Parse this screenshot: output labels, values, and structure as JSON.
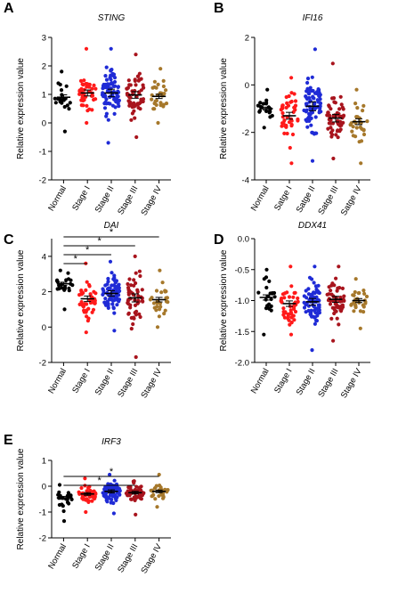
{
  "chart_data": [
    {
      "panel": "A",
      "type": "scatter",
      "title": "STING",
      "ylabel": "Relative expression value",
      "ylim": [
        -2,
        3
      ],
      "yticks": [
        -2,
        -1,
        0,
        1,
        2,
        3
      ],
      "categories": [
        "Normal",
        "Stage I",
        "Stage II",
        "Stage III",
        "Stage IV"
      ],
      "colors": [
        "#000000",
        "#ff1a1a",
        "#1f2bd6",
        "#a8141d",
        "#a6782b"
      ],
      "means": [
        0.9,
        1.05,
        1.05,
        0.98,
        0.93
      ],
      "ranges": [
        [
          -0.3,
          1.8
        ],
        [
          0.0,
          2.6
        ],
        [
          -0.7,
          2.6
        ],
        [
          -0.5,
          2.4
        ],
        [
          0.0,
          1.9
        ]
      ],
      "counts": [
        22,
        45,
        78,
        55,
        28
      ],
      "significance": []
    },
    {
      "panel": "B",
      "type": "scatter",
      "title": "IFI16",
      "ylabel": "Relative expression value",
      "ylim": [
        -4,
        2
      ],
      "yticks": [
        -4,
        -2,
        0,
        2
      ],
      "categories": [
        "Normal",
        "Satge I",
        "Satge II",
        "Satge III",
        "Satge IV"
      ],
      "colors": [
        "#000000",
        "#ff1a1a",
        "#1f2bd6",
        "#a8141d",
        "#a6782b"
      ],
      "means": [
        -1.0,
        -1.3,
        -0.9,
        -1.4,
        -1.55
      ],
      "ranges": [
        [
          -1.8,
          -0.2
        ],
        [
          -3.3,
          0.3
        ],
        [
          -3.2,
          1.5
        ],
        [
          -3.1,
          0.9
        ],
        [
          -3.3,
          -0.2
        ]
      ],
      "counts": [
        22,
        45,
        78,
        55,
        28
      ],
      "significance": []
    },
    {
      "panel": "C",
      "type": "scatter",
      "title": "DAI",
      "ylabel": "Relative expression value",
      "ylim": [
        -2,
        5
      ],
      "yticks": [
        -2,
        0,
        2,
        4
      ],
      "categories": [
        "Normal",
        "Stage I",
        "Stage II",
        "Stage III",
        "Stage IV"
      ],
      "colors": [
        "#000000",
        "#ff1a1a",
        "#1f2bd6",
        "#a8141d",
        "#a6782b"
      ],
      "means": [
        2.45,
        1.6,
        1.9,
        1.65,
        1.55
      ],
      "ranges": [
        [
          1.0,
          3.2
        ],
        [
          -0.3,
          3.6
        ],
        [
          -0.2,
          3.7
        ],
        [
          -1.7,
          4.0
        ],
        [
          0.0,
          3.2
        ]
      ],
      "counts": [
        22,
        45,
        78,
        55,
        28
      ],
      "significance": [
        {
          "from": 0,
          "to": 1,
          "label": "*"
        },
        {
          "from": 0,
          "to": 2,
          "label": "*"
        },
        {
          "from": 0,
          "to": 3,
          "label": "*"
        },
        {
          "from": 0,
          "to": 4,
          "label": "*"
        }
      ]
    },
    {
      "panel": "D",
      "type": "scatter",
      "title": "DDX41",
      "ylabel": "Relative expression value",
      "ylim": [
        -2.0,
        0.0
      ],
      "yticks": [
        -2.0,
        -1.5,
        -1.0,
        -0.5,
        0.0
      ],
      "ytick_labels": [
        "-2.0",
        "-1.5",
        "-1.0",
        "-0.5",
        "0.0"
      ],
      "categories": [
        "Normal",
        "Stage I",
        "Stage II",
        "Stage III",
        "Stage IV"
      ],
      "colors": [
        "#000000",
        "#ff1a1a",
        "#1f2bd6",
        "#a8141d",
        "#a6782b"
      ],
      "means": [
        -0.95,
        -1.05,
        -1.02,
        -0.98,
        -1.0
      ],
      "ranges": [
        [
          -1.55,
          -0.5
        ],
        [
          -1.55,
          -0.45
        ],
        [
          -1.8,
          -0.45
        ],
        [
          -1.65,
          -0.45
        ],
        [
          -1.45,
          -0.65
        ]
      ],
      "counts": [
        22,
        45,
        78,
        55,
        28
      ],
      "significance": []
    },
    {
      "panel": "E",
      "type": "scatter",
      "title": "IRF3",
      "ylabel": "Relative expression value",
      "ylim": [
        -2,
        1
      ],
      "yticks": [
        -2,
        -1,
        0,
        1
      ],
      "categories": [
        "Normal",
        "Stage I",
        "Stage II",
        "Stage III",
        "Stage IV"
      ],
      "colors": [
        "#000000",
        "#ff1a1a",
        "#1f2bd6",
        "#a8141d",
        "#a6782b"
      ],
      "means": [
        -0.45,
        -0.3,
        -0.2,
        -0.25,
        -0.2
      ],
      "ranges": [
        [
          -1.35,
          0.05
        ],
        [
          -1.0,
          0.3
        ],
        [
          -1.05,
          0.45
        ],
        [
          -1.1,
          0.2
        ],
        [
          -0.8,
          0.45
        ]
      ],
      "counts": [
        22,
        45,
        78,
        55,
        28
      ],
      "significance": [
        {
          "from": 0,
          "to": 3,
          "label": "*"
        },
        {
          "from": 0,
          "to": 4,
          "label": "*"
        }
      ]
    }
  ]
}
